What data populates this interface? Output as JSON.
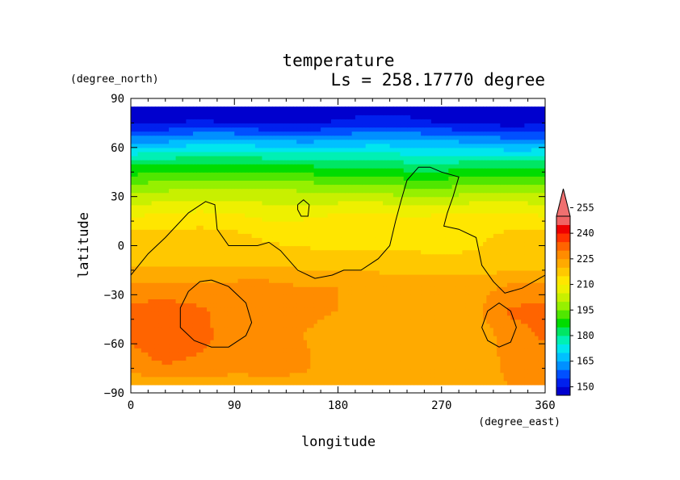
{
  "chart_data": {
    "type": "heatmap",
    "title": "temperature",
    "subtitle": "Ls = 258.17770 degree",
    "xlabel": "longitude",
    "ylabel": "latitude",
    "x_units": "(degree_east)",
    "y_units": "(degree_north)",
    "xlim": [
      0,
      360
    ],
    "ylim": [
      -90,
      90
    ],
    "data_lat_range": [
      -85,
      85
    ],
    "xticks": [
      0,
      90,
      180,
      270,
      360
    ],
    "yticks": [
      -90,
      -60,
      -30,
      0,
      30,
      60,
      90
    ],
    "xtick_labels": [
      "0",
      "90",
      "180",
      "270",
      "360"
    ],
    "ytick_labels": [
      "−90",
      "−60",
      "−30",
      "0",
      "30",
      "60",
      "90"
    ],
    "grid": false,
    "colorbar": {
      "position": "right",
      "levels": [
        145,
        150,
        155,
        160,
        165,
        170,
        175,
        180,
        185,
        190,
        195,
        200,
        205,
        210,
        215,
        220,
        225,
        230,
        235,
        240,
        245,
        250,
        255,
        260
      ],
      "colors": [
        "#0000ce",
        "#0020ee",
        "#0050ff",
        "#0090ff",
        "#00c0ff",
        "#00e6ee",
        "#00f0b4",
        "#00e664",
        "#00dc00",
        "#50e600",
        "#96f000",
        "#c8f000",
        "#eef000",
        "#ffe600",
        "#ffc800",
        "#ffaa00",
        "#ff8c00",
        "#ff6400",
        "#ff3200",
        "#ee0000",
        "#f06464"
      ],
      "extend_max_color": "#f07070",
      "tick_values": [
        150,
        165,
        180,
        195,
        210,
        225,
        240,
        255
      ],
      "tick_labels": [
        "150",
        "165",
        "180",
        "195",
        "210",
        "225",
        "240",
        "255"
      ]
    },
    "lon_grid": [
      0,
      30,
      60,
      90,
      120,
      150,
      180,
      210,
      240,
      270,
      300,
      330,
      360
    ],
    "lat_grid": [
      -85,
      -70,
      -55,
      -40,
      -25,
      -10,
      5,
      20,
      35,
      50,
      65,
      75,
      85
    ],
    "values": [
      [
        222,
        223,
        223,
        224,
        224,
        224,
        223,
        222,
        222,
        223,
        224,
        225,
        226
      ],
      [
        228,
        231,
        229,
        226,
        227,
        226,
        222,
        222,
        221,
        222,
        223,
        226,
        227
      ],
      [
        231,
        233,
        232,
        227,
        227,
        225,
        223,
        221,
        220,
        221,
        222,
        227,
        231
      ],
      [
        232,
        233,
        231,
        227,
        227,
        226,
        225,
        224,
        223,
        223,
        224,
        231,
        232
      ],
      [
        226,
        227,
        226,
        227,
        227,
        225,
        225,
        225,
        223,
        223,
        223,
        226,
        226
      ],
      [
        218,
        219,
        219,
        219,
        219,
        218,
        217,
        217,
        216,
        216,
        216,
        217,
        218
      ],
      [
        217,
        217,
        218,
        217,
        214,
        213,
        213,
        213,
        214,
        213,
        214,
        217,
        217
      ],
      [
        209,
        210,
        211,
        210,
        208,
        209,
        210,
        211,
        209,
        210,
        211,
        211,
        209
      ],
      [
        198,
        199,
        200,
        201,
        200,
        199,
        198,
        198,
        196,
        196,
        197,
        198,
        198
      ],
      [
        184,
        185,
        186,
        186,
        185,
        184,
        183,
        183,
        181,
        181,
        182,
        182,
        183
      ],
      [
        162,
        163,
        166,
        166,
        164,
        163,
        164,
        166,
        166,
        164,
        163,
        161,
        161
      ],
      [
        149,
        150,
        151,
        150,
        149,
        149,
        151,
        153,
        152,
        150,
        149,
        148,
        149
      ],
      [
        145,
        146,
        146,
        146,
        145,
        145,
        146,
        147,
        147,
        146,
        145,
        145,
        145
      ]
    ],
    "contours": [
      [
        [
          0,
          -18
        ],
        [
          15,
          -5
        ],
        [
          30,
          5
        ],
        [
          50,
          20
        ],
        [
          65,
          27
        ],
        [
          73,
          25
        ],
        [
          75,
          10
        ],
        [
          85,
          0
        ],
        [
          110,
          0
        ],
        [
          120,
          2
        ],
        [
          130,
          -3
        ],
        [
          145,
          -15
        ],
        [
          160,
          -20
        ],
        [
          175,
          -18
        ],
        [
          185,
          -15
        ],
        [
          200,
          -15
        ],
        [
          215,
          -8
        ],
        [
          225,
          0
        ],
        [
          230,
          15
        ],
        [
          235,
          28
        ],
        [
          240,
          40
        ],
        [
          250,
          48
        ],
        [
          260,
          48
        ],
        [
          270,
          45
        ],
        [
          285,
          42
        ],
        [
          280,
          30
        ],
        [
          275,
          20
        ],
        [
          272,
          12
        ],
        [
          285,
          10
        ],
        [
          300,
          5
        ],
        [
          305,
          -12
        ],
        [
          315,
          -22
        ],
        [
          325,
          -29
        ],
        [
          340,
          -26
        ],
        [
          360,
          -18
        ]
      ],
      [
        [
          145,
          25
        ],
        [
          150,
          28
        ],
        [
          155,
          25
        ],
        [
          154,
          18
        ],
        [
          148,
          18
        ],
        [
          145,
          22
        ],
        [
          145,
          25
        ]
      ],
      [
        [
          70,
          -21
        ],
        [
          85,
          -25
        ],
        [
          100,
          -35
        ],
        [
          105,
          -47
        ],
        [
          100,
          -55
        ],
        [
          85,
          -62
        ],
        [
          70,
          -62
        ],
        [
          55,
          -58
        ],
        [
          43,
          -50
        ],
        [
          43,
          -38
        ],
        [
          50,
          -28
        ],
        [
          60,
          -22
        ],
        [
          70,
          -21
        ]
      ],
      [
        [
          320,
          -35
        ],
        [
          330,
          -40
        ],
        [
          335,
          -50
        ],
        [
          330,
          -59
        ],
        [
          320,
          -62
        ],
        [
          310,
          -58
        ],
        [
          305,
          -50
        ],
        [
          310,
          -40
        ],
        [
          320,
          -35
        ]
      ]
    ]
  }
}
